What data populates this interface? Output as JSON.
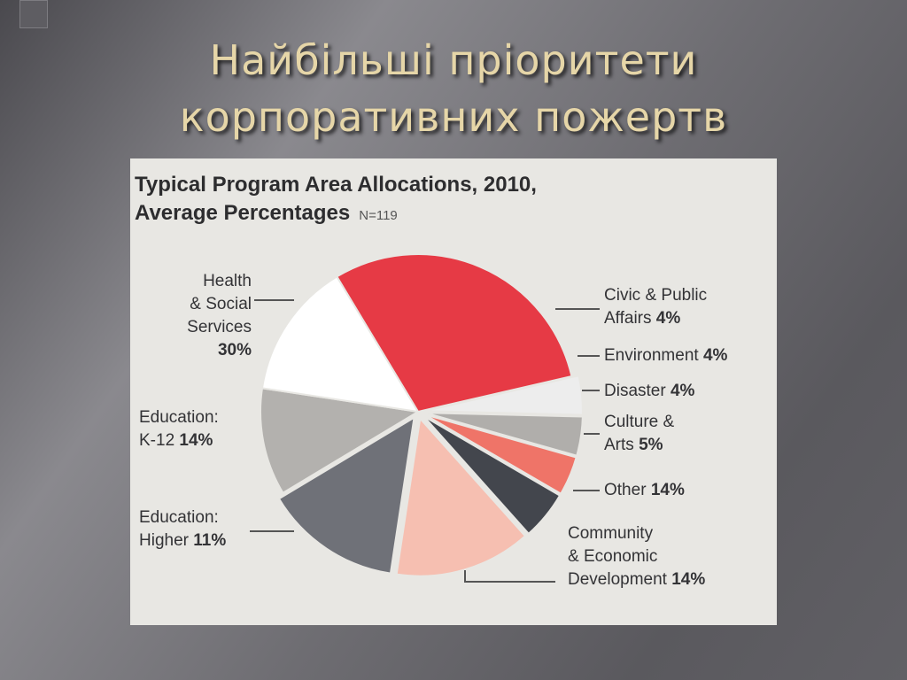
{
  "slide": {
    "title_line1": "Найбільші пріоритети",
    "title_line2": "корпоративних пожертв"
  },
  "chart_data": {
    "type": "pie",
    "title": "Typical Program Area Allocations, 2010,",
    "subtitle": "Average Percentages",
    "note": "N=119",
    "unit": "%",
    "slices": [
      {
        "label": "Health & Social Services",
        "value": 30,
        "color": "#e63a45"
      },
      {
        "label": "Civic & Public Affairs",
        "value": 4,
        "color": "#ededed"
      },
      {
        "label": "Environment",
        "value": 4,
        "color": "#b0aeab"
      },
      {
        "label": "Disaster",
        "value": 4,
        "color": "#ef7468"
      },
      {
        "label": "Culture & Arts",
        "value": 5,
        "color": "#43464d"
      },
      {
        "label": "Other",
        "value": 14,
        "color": "#f6bfb1"
      },
      {
        "label": "Community & Economic Development",
        "value": 14,
        "color": "#6f7178"
      },
      {
        "label": "Education: Higher",
        "value": 11,
        "color": "#b3b1ae"
      },
      {
        "label": "Education: K-12",
        "value": 14,
        "color": "#ffffff"
      }
    ],
    "labels": {
      "health": {
        "line1": "Health",
        "line2": "& Social",
        "line3": "Services",
        "value": "30%"
      },
      "civic": {
        "line1": "Civic & Public",
        "line2": "Affairs",
        "value": "4%"
      },
      "environment": {
        "name": "Environment",
        "value": "4%"
      },
      "disaster": {
        "name": "Disaster",
        "value": "4%"
      },
      "culture": {
        "line1": "Culture &",
        "line2": "Arts",
        "value": "5%"
      },
      "other": {
        "name": "Other",
        "value": "14%"
      },
      "community": {
        "line1": "Community",
        "line2": "& Economic",
        "line3": "Development",
        "value": "14%"
      },
      "higher": {
        "line1": "Education:",
        "line2": "Higher",
        "value": "11%"
      },
      "k12": {
        "line1": "Education:",
        "line2": "K-12",
        "value": "14%"
      }
    }
  }
}
